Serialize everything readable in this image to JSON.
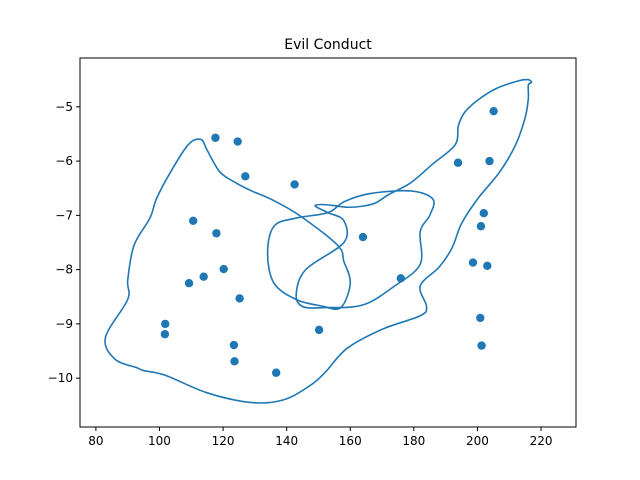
{
  "chart_data": {
    "type": "scatter",
    "title": "Evil Conduct",
    "xlabel": "",
    "ylabel": "",
    "xlim": [
      75,
      231
    ],
    "ylim": [
      -10.9,
      -4.1
    ],
    "xticks": [
      80,
      100,
      120,
      140,
      160,
      180,
      200,
      220
    ],
    "yticks": [
      -10,
      -9,
      -8,
      -7,
      -6,
      -5
    ],
    "grid": false,
    "colors": {
      "series": "#1f77b4",
      "axes": "#000000",
      "background": "#ffffff"
    },
    "points": {
      "x": [
        117.6,
        124.6,
        127.0,
        142.5,
        110.6,
        117.9,
        120.2,
        113.9,
        109.3,
        125.2,
        101.8,
        101.7,
        123.4,
        123.6,
        136.7,
        150.2,
        164.0,
        175.9,
        205.1,
        193.9,
        203.8,
        202.0,
        201.1,
        198.6,
        203.1,
        200.9,
        201.3
      ],
      "y": [
        -5.57,
        -5.64,
        -6.28,
        -6.43,
        -7.1,
        -7.33,
        -7.99,
        -8.13,
        -8.25,
        -8.53,
        -9.0,
        -9.19,
        -9.39,
        -9.69,
        -9.9,
        -9.11,
        -7.4,
        -8.16,
        -5.08,
        -6.03,
        -6.0,
        -6.96,
        -7.2,
        -7.87,
        -7.93,
        -8.89,
        -9.4
      ]
    },
    "outline": {
      "x": [
        90,
        83,
        86,
        93,
        95,
        102,
        115,
        129,
        139,
        147,
        152,
        159,
        170,
        182,
        184,
        182,
        188,
        192,
        195,
        200,
        207,
        212,
        215,
        216,
        216,
        217,
        216,
        213,
        206,
        200,
        196,
        194,
        193,
        186,
        179,
        172,
        168,
        164,
        159,
        155,
        151,
        149,
        153,
        158,
        158,
        146,
        143,
        145,
        152,
        164,
        174,
        182,
        182,
        185,
        186,
        179,
        166,
        158,
        153,
        143,
        136,
        134,
        136,
        143,
        151,
        157,
        160,
        158,
        156,
        144,
        135,
        129,
        124,
        119,
        115,
        113,
        109,
        103,
        99,
        97,
        92,
        90
      ],
      "y": [
        -8.55,
        -9.25,
        -9.65,
        -9.81,
        -9.86,
        -9.95,
        -10.27,
        -10.45,
        -10.4,
        -10.15,
        -9.9,
        -9.45,
        -9.1,
        -8.85,
        -8.68,
        -8.3,
        -7.95,
        -7.6,
        -7.15,
        -6.7,
        -6.2,
        -5.7,
        -5.2,
        -4.85,
        -4.6,
        -4.55,
        -4.5,
        -4.52,
        -4.66,
        -4.88,
        -5.1,
        -5.35,
        -5.7,
        -6.05,
        -6.4,
        -6.62,
        -6.77,
        -6.83,
        -6.85,
        -6.82,
        -6.8,
        -6.83,
        -6.95,
        -7.1,
        -7.5,
        -8.0,
        -8.45,
        -8.68,
        -8.7,
        -8.65,
        -8.3,
        -7.9,
        -7.3,
        -7.0,
        -6.7,
        -6.55,
        -6.6,
        -6.75,
        -6.95,
        -7.05,
        -7.2,
        -7.7,
        -8.25,
        -8.55,
        -8.67,
        -8.7,
        -8.25,
        -7.85,
        -7.55,
        -7.0,
        -6.7,
        -6.55,
        -6.4,
        -6.2,
        -5.8,
        -5.6,
        -5.7,
        -6.25,
        -6.7,
        -7.05,
        -7.55,
        -8.2
      ]
    }
  }
}
